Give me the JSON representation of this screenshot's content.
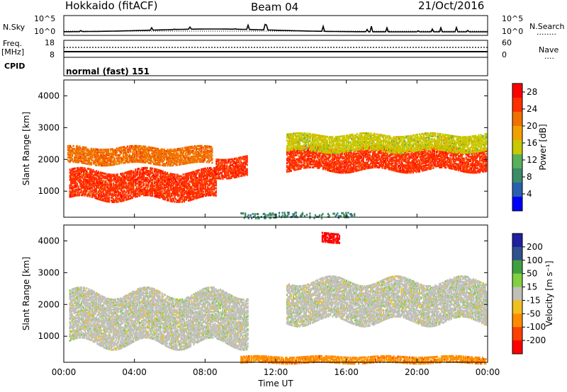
{
  "header": {
    "radar": "Hokkaido (fitACF)",
    "beam": "Beam 04",
    "date": "21/Oct/2016"
  },
  "noise_panel": {
    "left_label": "N.Sky",
    "left_ticks": [
      "10^5",
      "10^0"
    ],
    "right_ticks": [
      "10^5",
      "10^0"
    ],
    "right_label": "N.Search",
    "right_legend": "........"
  },
  "freq_panel": {
    "label_line1": "Freq.",
    "label_line2": "[MHz]",
    "left_ticks": [
      "18",
      "8"
    ],
    "right_ticks": [
      "60",
      "0"
    ],
    "right_label": "Nave",
    "right_legend": "....",
    "cpid_label": "CPID",
    "cpid_value": "normal (fast) 151"
  },
  "colors": {
    "power_scale": [
      "#0000ff",
      "#2a5fb0",
      "#3b8a6a",
      "#5ab05a",
      "#c8c800",
      "#f0a000",
      "#f07000",
      "#ff3000",
      "#ff0000"
    ],
    "velocity_scale": [
      "#ff0000",
      "#ff4000",
      "#ff8c00",
      "#f0c020",
      "#c0c0b8",
      "#80d040",
      "#40a040",
      "#305090",
      "#2020a0"
    ],
    "ground_scatter": "#c0c0b8"
  },
  "chart_data": [
    {
      "type": "heatmap",
      "name": "power",
      "ylabel": "Slant Range [km]",
      "ylim": [
        180,
        4500
      ],
      "y_ticks": [
        1000,
        2000,
        3000,
        4000
      ],
      "x_ticks": [
        "00:00",
        "04:00",
        "08:00",
        "12:00",
        "16:00",
        "20:00",
        "00:00"
      ],
      "colorbar": {
        "label": "Power [dB]",
        "ticks": [
          4,
          8,
          12,
          16,
          20,
          24,
          28
        ],
        "range": [
          0,
          30
        ]
      },
      "features": [
        {
          "hours": [
            0.3,
            8.6
          ],
          "range_km": [
            800,
            1700
          ],
          "value_db": 26
        },
        {
          "hours": [
            0.2,
            8.4
          ],
          "range_km": [
            1900,
            2400
          ],
          "value_db": 22
        },
        {
          "hours": [
            8.6,
            10.4
          ],
          "range_km": [
            1500,
            2100
          ],
          "value_db": 26
        },
        {
          "hours": [
            12.6,
            23.9
          ],
          "range_km": [
            1700,
            2400
          ],
          "value_db": 27
        },
        {
          "hours": [
            12.6,
            23.9
          ],
          "range_km": [
            2300,
            2800
          ],
          "value_db": 16
        },
        {
          "hours": [
            10.0,
            16.5
          ],
          "range_km": [
            200,
            380
          ],
          "value_db": 6
        }
      ]
    },
    {
      "type": "heatmap",
      "name": "velocity",
      "ylabel": "Slant Range [km]",
      "xlabel": "Time UT",
      "ylim": [
        180,
        4500
      ],
      "y_ticks": [
        1000,
        2000,
        3000,
        4000
      ],
      "x_ticks": [
        "00:00",
        "04:00",
        "08:00",
        "12:00",
        "16:00",
        "20:00",
        "00:00"
      ],
      "colorbar": {
        "label": "Velocity [m s⁻¹]",
        "ticks": [
          200,
          100,
          50,
          15,
          -15,
          -50,
          -100,
          -200
        ]
      },
      "features": [
        {
          "hours": [
            0.3,
            10.4
          ],
          "range_km": [
            800,
            2400
          ],
          "value_ms": 0
        },
        {
          "hours": [
            12.6,
            23.9
          ],
          "range_km": [
            1500,
            2800
          ],
          "value_ms": 0
        },
        {
          "hours": [
            10.0,
            23.9
          ],
          "range_km": [
            200,
            420
          ],
          "value_ms": -80
        },
        {
          "hours": [
            14.6,
            15.6
          ],
          "range_km": [
            4000,
            4300
          ],
          "value_ms": -250
        }
      ]
    }
  ]
}
